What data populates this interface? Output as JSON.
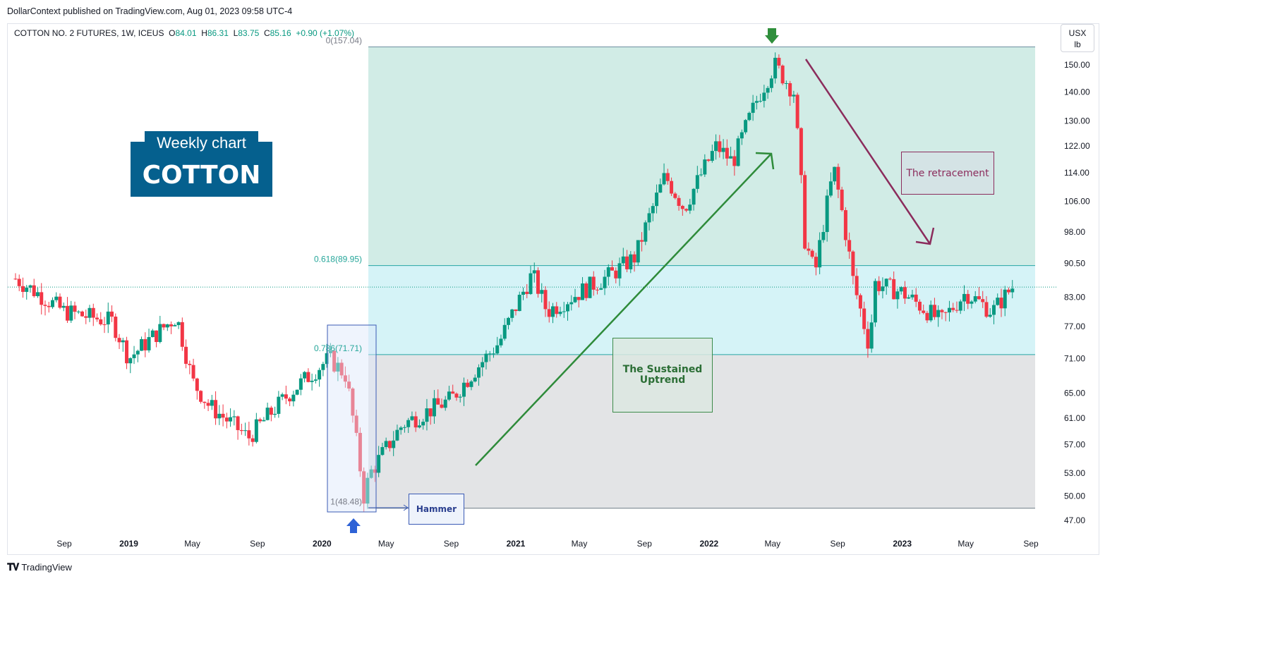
{
  "header": {
    "published": "DollarContext published on TradingView.com, Aug 01, 2023 09:58 UTC-4",
    "symbol": "COTTON NO. 2 FUTURES, 1W, ICEUS",
    "o_label": "O",
    "o_value": "84.01",
    "h_label": "H",
    "h_value": "86.31",
    "l_label": "L",
    "l_value": "83.75",
    "c_label": "C",
    "c_value": "85.16",
    "change": "+0.90 (+1.07%)"
  },
  "unit": {
    "line1": "USX",
    "line2": "lb"
  },
  "footer": {
    "brand": "TradingView"
  },
  "title_block": {
    "small": "Weekly chart",
    "big": "COTTON"
  },
  "annotations": {
    "sustained_1": "The Sustained",
    "sustained_2": "Uptrend",
    "retracement": "The retracement",
    "hammer": "Hammer"
  },
  "colors": {
    "up": "#089981",
    "down": "#f23645",
    "fib_top": "#d1ece6",
    "fib_mid": "#d5f3f7",
    "fib_bottom": "#e3e4e6",
    "uptrend_arrow": "#2e8b3a",
    "retrace_arrow": "#8b2c5c",
    "accent": "#05608e"
  },
  "chart_data": {
    "type": "candlestick",
    "title": "COTTON NO. 2 FUTURES, 1W, ICEUS",
    "timeframe": "1W",
    "ylabel": "USX/lb",
    "y_scale": "log",
    "ylim": [
      44.5,
      162
    ],
    "y_ticks": [
      "47.00",
      "50.00",
      "53.00",
      "57.00",
      "61.00",
      "65.00",
      "71.00",
      "77.00",
      "83.00",
      "90.50",
      "98.00",
      "106.00",
      "114.00",
      "122.00",
      "130.00",
      "140.00",
      "150.00"
    ],
    "x_ticks": [
      "Sep",
      "2019",
      "May",
      "Sep",
      "2020",
      "May",
      "Sep",
      "2021",
      "May",
      "Sep",
      "2022",
      "May",
      "Sep",
      "2023",
      "May",
      "Sep"
    ],
    "last_price": 85.16,
    "fibonacci": [
      {
        "label": "0(157.04)",
        "value": 157.04
      },
      {
        "label": "0.618(89.95)",
        "value": 89.95
      },
      {
        "label": "0.786(71.71)",
        "value": 71.71
      },
      {
        "label": "1(48.48)",
        "value": 48.48
      }
    ],
    "anchors": [
      {
        "x": "2018-06-01",
        "y": 87
      },
      {
        "x": "2018-09-01",
        "y": 80
      },
      {
        "x": "2018-12-01",
        "y": 78
      },
      {
        "x": "2019-01-01",
        "y": 71
      },
      {
        "x": "2019-04-01",
        "y": 79
      },
      {
        "x": "2019-05-01",
        "y": 67
      },
      {
        "x": "2019-06-01",
        "y": 63
      },
      {
        "x": "2019-08-15",
        "y": 58
      },
      {
        "x": "2019-11-01",
        "y": 65
      },
      {
        "x": "2020-01-15",
        "y": 71
      },
      {
        "x": "2020-02-15",
        "y": 68
      },
      {
        "x": "2020-03-20",
        "y": 50
      },
      {
        "x": "2020-04-01",
        "y": 53
      },
      {
        "x": "2020-06-01",
        "y": 60
      },
      {
        "x": "2020-09-01",
        "y": 64
      },
      {
        "x": "2020-12-01",
        "y": 74
      },
      {
        "x": "2021-02-01",
        "y": 88
      },
      {
        "x": "2021-03-01",
        "y": 80
      },
      {
        "x": "2021-05-01",
        "y": 84
      },
      {
        "x": "2021-07-01",
        "y": 88
      },
      {
        "x": "2021-08-15",
        "y": 92
      },
      {
        "x": "2021-10-10",
        "y": 113
      },
      {
        "x": "2021-11-15",
        "y": 104
      },
      {
        "x": "2022-01-15",
        "y": 122
      },
      {
        "x": "2022-02-15",
        "y": 117
      },
      {
        "x": "2022-04-01",
        "y": 137
      },
      {
        "x": "2022-05-05",
        "y": 150
      },
      {
        "x": "2022-06-10",
        "y": 140
      },
      {
        "x": "2022-07-01",
        "y": 96
      },
      {
        "x": "2022-07-20",
        "y": 88
      },
      {
        "x": "2022-08-25",
        "y": 115
      },
      {
        "x": "2022-10-01",
        "y": 86
      },
      {
        "x": "2022-10-31",
        "y": 73
      },
      {
        "x": "2022-11-10",
        "y": 86
      },
      {
        "x": "2023-01-01",
        "y": 84
      },
      {
        "x": "2023-03-15",
        "y": 78
      },
      {
        "x": "2023-05-01",
        "y": 84
      },
      {
        "x": "2023-06-20",
        "y": 80
      },
      {
        "x": "2023-07-28",
        "y": 85.16
      }
    ]
  }
}
